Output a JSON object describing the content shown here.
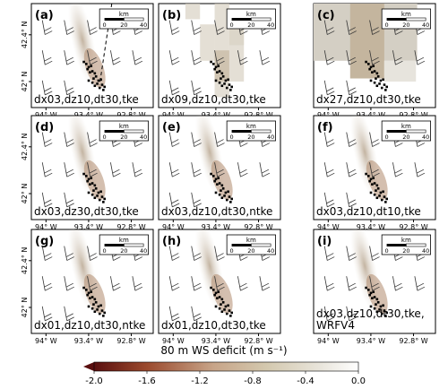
{
  "scale_bar": {
    "unit": "km",
    "ticks": [
      "0",
      "20",
      "40"
    ]
  },
  "axes": {
    "y_ticks": [
      "42.4° N",
      "42° N"
    ],
    "x_ticks": [
      "94° W",
      "93.4° W",
      "92.8° W"
    ]
  },
  "panels": [
    {
      "letter": "(a)",
      "caption": [
        "dx03,dz10,dt30,tke"
      ],
      "show_y": true,
      "show_x": false,
      "transect": true
    },
    {
      "letter": "(b)",
      "caption": [
        "dx09,dz10,dt30,tke"
      ],
      "show_y": false,
      "show_x": true,
      "transect": false
    },
    {
      "letter": "(c)",
      "caption": [
        "dx27,dz10,dt30,tke"
      ],
      "show_y": false,
      "show_x": true,
      "transect": false
    },
    {
      "letter": "(d)",
      "caption": [
        "dx03,dz30,dt30,tke"
      ],
      "show_y": true,
      "show_x": true,
      "transect": false
    },
    {
      "letter": "(e)",
      "caption": [
        "dx03,dz10,dt30,ntke"
      ],
      "show_y": false,
      "show_x": true,
      "transect": false
    },
    {
      "letter": "(f)",
      "caption": [
        "dx03,dz10,dt10,tke"
      ],
      "show_y": false,
      "show_x": true,
      "transect": false
    },
    {
      "letter": "(g)",
      "caption": [
        "dx01,dz10,dt30,ntke"
      ],
      "show_y": true,
      "show_x": true,
      "transect": false
    },
    {
      "letter": "(h)",
      "caption": [
        "dx01,dz10,dt30,tke"
      ],
      "show_y": false,
      "show_x": true,
      "transect": false
    },
    {
      "letter": "(i)",
      "caption": [
        "dx03,dz10,dt30,tke,",
        "WRFV4"
      ],
      "show_y": false,
      "show_x": true,
      "transect": false
    }
  ],
  "colorbar": {
    "title": "80 m WS deficit (m s⁻¹)",
    "ticks": [
      "-2.0",
      "-1.6",
      "-1.2",
      "-0.8",
      "-0.4",
      "0.0"
    ],
    "colors": [
      "#5a0f0f",
      "#9b4a2e",
      "#c7a488",
      "#d3c8ae",
      "#e8e4da",
      "#ffffff"
    ]
  }
}
